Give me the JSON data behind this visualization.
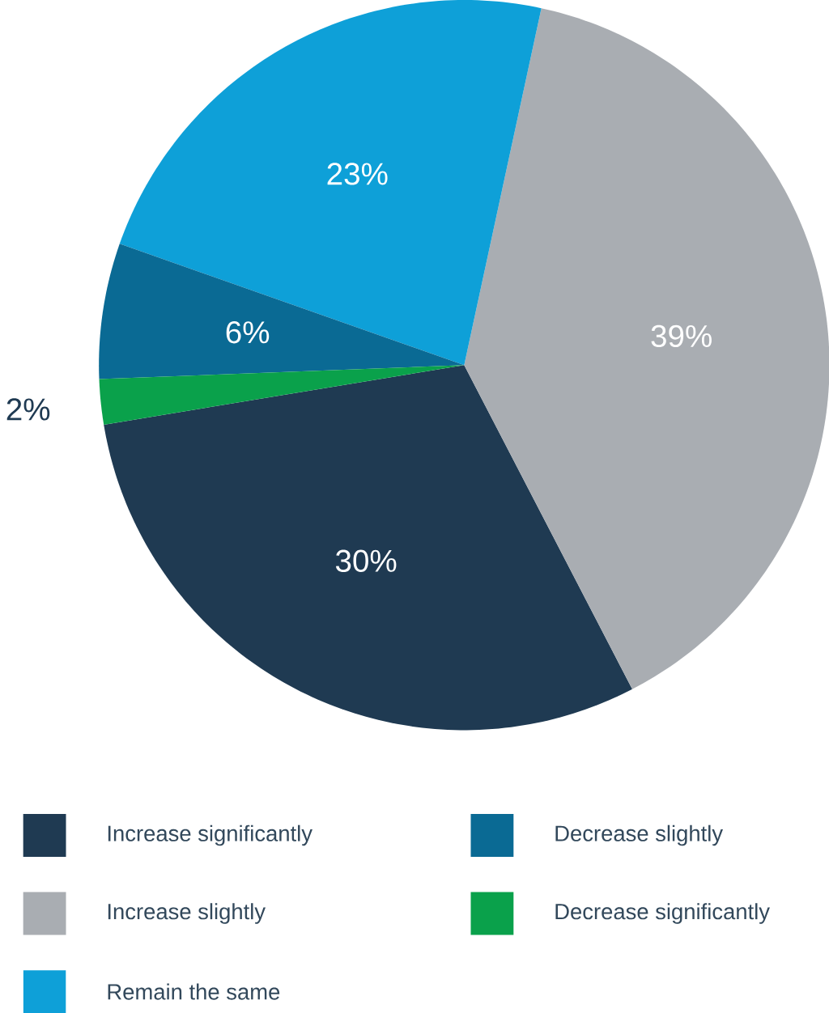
{
  "chart_data": {
    "type": "pie",
    "categories": [
      "Increase significantly",
      "Increase slightly",
      "Remain the same",
      "Decrease slightly",
      "Decrease significantly"
    ],
    "values": [
      30,
      39,
      23,
      6,
      2
    ],
    "value_labels": [
      "30%",
      "39%",
      "23%",
      "6%",
      "2%"
    ],
    "colors": [
      "#1f3a52",
      "#a9adb2",
      "#0ea0d8",
      "#0a6a94",
      "#0aa14b"
    ],
    "legend": "bottom"
  }
}
